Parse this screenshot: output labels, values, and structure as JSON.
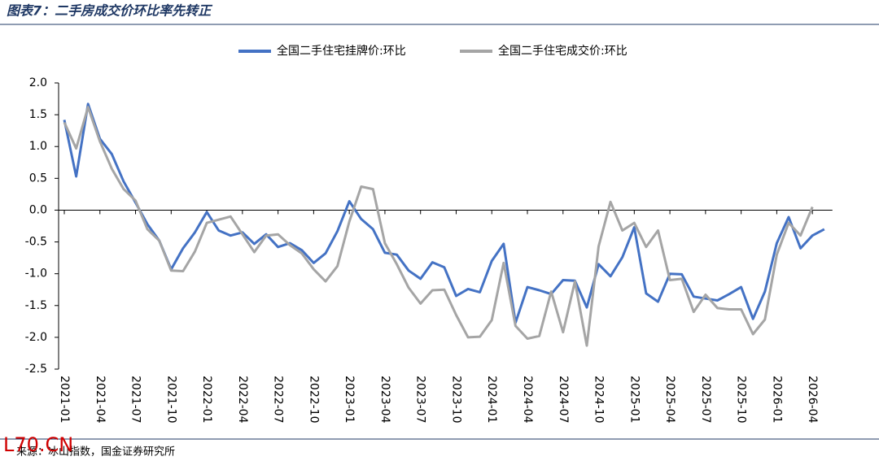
{
  "chart_data": {
    "type": "line",
    "title": "图表7：二手房成交价环比率先转正",
    "source": "来源：冰山指数，国金证券研究所",
    "watermark": "L70.CN",
    "categories": [
      "2021-01",
      null,
      null,
      "2021-04",
      null,
      null,
      "2021-07",
      null,
      null,
      "2021-10",
      null,
      null,
      "2022-01",
      null,
      null,
      "2022-04",
      null,
      null,
      "2022-07",
      null,
      null,
      "2022-10",
      null,
      null,
      "2023-01",
      null,
      null,
      "2023-04",
      null,
      null,
      "2023-07",
      null,
      null,
      "2023-10",
      null,
      null,
      "2024-01",
      null,
      null,
      "2024-04",
      null,
      null,
      "2024-07",
      null,
      null,
      "2024-10",
      null,
      null,
      "2025-01",
      null,
      null,
      "2025-04",
      null,
      null,
      "2025-07",
      null,
      null,
      "2025-10",
      null,
      null,
      "2026-01",
      null,
      null,
      "2026-04",
      null
    ],
    "series": [
      {
        "name": "全国二手住宅挂牌价:环比",
        "color": "#4472c4",
        "values": [
          1.42,
          0.53,
          1.67,
          1.12,
          0.88,
          0.45,
          0.12,
          -0.22,
          -0.48,
          -0.93,
          -0.6,
          -0.35,
          -0.03,
          -0.32,
          -0.4,
          -0.35,
          -0.53,
          -0.38,
          -0.58,
          -0.52,
          -0.63,
          -0.83,
          -0.68,
          -0.33,
          0.14,
          -0.14,
          -0.3,
          -0.67,
          -0.7,
          -0.95,
          -1.08,
          -0.82,
          -0.9,
          -1.35,
          -1.24,
          -1.29,
          -0.8,
          -0.53,
          -1.77,
          -1.21,
          -1.26,
          -1.32,
          -1.1,
          -1.11,
          -1.53,
          -0.85,
          -1.04,
          -0.74,
          -0.27,
          -1.31,
          -1.44,
          -1.0,
          -1.01,
          -1.36,
          -1.39,
          -1.42,
          -1.32,
          -1.21,
          -1.71,
          -1.28,
          -0.52,
          -0.11,
          -0.6,
          -0.4,
          -0.3
        ]
      },
      {
        "name": "全国二手住宅成交价:环比",
        "color": "#a5a5a5",
        "values": [
          1.38,
          0.97,
          1.62,
          1.08,
          0.65,
          0.33,
          0.15,
          -0.3,
          -0.48,
          -0.95,
          -0.96,
          -0.65,
          -0.2,
          -0.15,
          -0.1,
          -0.38,
          -0.66,
          -0.4,
          -0.38,
          -0.55,
          -0.68,
          -0.93,
          -1.12,
          -0.88,
          -0.18,
          0.37,
          0.33,
          -0.52,
          -0.85,
          -1.22,
          -1.47,
          -1.26,
          -1.25,
          -1.65,
          -2.0,
          -1.99,
          -1.73,
          -0.83,
          -1.82,
          -2.02,
          -1.98,
          -1.28,
          -1.92,
          -1.12,
          -2.13,
          -0.57,
          0.13,
          -0.32,
          -0.2,
          -0.58,
          -0.32,
          -1.1,
          -1.08,
          -1.6,
          -1.33,
          -1.54,
          -1.56,
          -1.56,
          -1.95,
          -1.72,
          -0.7,
          -0.2,
          -0.4,
          0.05,
          null
        ]
      }
    ],
    "ylim": [
      -2.5,
      2.0
    ],
    "yticks": [
      {
        "value": 2,
        "label": "2.0"
      },
      1.5,
      {
        "value": 1,
        "label": "1.0"
      },
      0.5,
      {
        "value": 0,
        "label": "0.0"
      },
      -0.5,
      {
        "value": -1,
        "label": "-1.0"
      },
      -1.5,
      {
        "value": -2,
        "label": "-2.0"
      },
      -2.5
    ],
    "legend": "top"
  }
}
